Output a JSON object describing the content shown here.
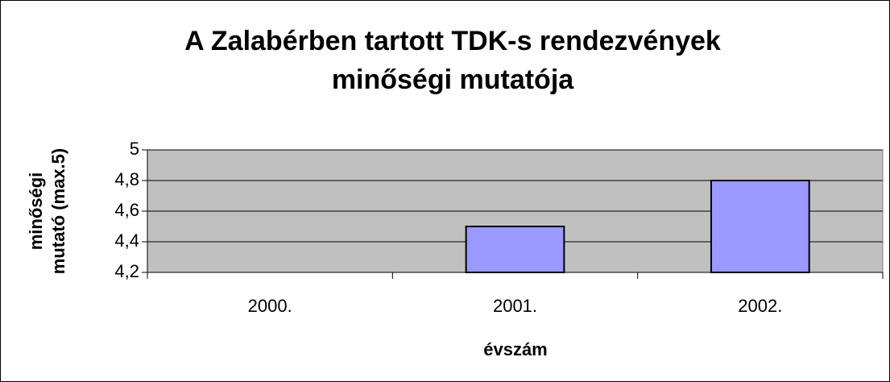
{
  "chart_data": {
    "type": "bar",
    "title": [
      "A Zalabérben tartott TDK-s rendezvények",
      "minőségi mutatója"
    ],
    "x_label": "évszám",
    "y_label": [
      "minőségi",
      "mutató (max.5)"
    ],
    "categories": [
      "2000.",
      "2001.",
      "2002."
    ],
    "values": [
      null,
      4.5,
      4.8
    ],
    "color": "#9999ff",
    "ylim": [
      4.2,
      5
    ],
    "yticks": [
      {
        "value": 4.2,
        "label": "4,2"
      },
      {
        "value": 4.4,
        "label": "4,4"
      },
      {
        "value": 4.6,
        "label": "4,6"
      },
      {
        "value": 4.8,
        "label": "4,8"
      },
      5
    ],
    "grid": true
  }
}
